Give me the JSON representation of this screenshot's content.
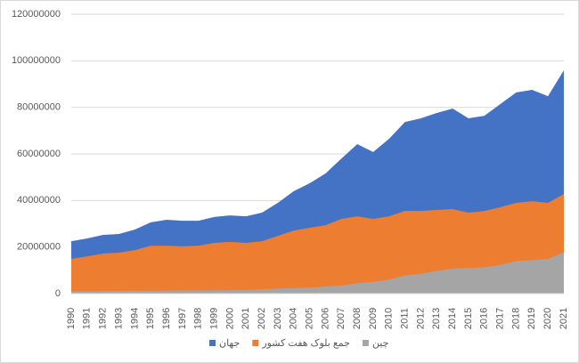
{
  "chart_data": {
    "type": "area",
    "categories": [
      "1990",
      "1991",
      "1992",
      "1993",
      "1994",
      "1995",
      "1996",
      "1997",
      "1998",
      "1999",
      "2000",
      "2001",
      "2002",
      "2003",
      "2004",
      "2005",
      "2006",
      "2007",
      "2008",
      "2009",
      "2010",
      "2011",
      "2012",
      "2013",
      "2014",
      "2015",
      "2016",
      "2017",
      "2018",
      "2019",
      "2020",
      "2021"
    ],
    "series": [
      {
        "name": "جهان",
        "color": "#4472c4",
        "values": [
          22500000,
          23700000,
          25200000,
          25600000,
          27500000,
          30600000,
          31700000,
          31300000,
          31300000,
          32900000,
          33600000,
          33200000,
          34800000,
          39000000,
          44000000,
          47400000,
          51600000,
          58000000,
          64200000,
          60800000,
          66500000,
          73700000,
          75300000,
          77600000,
          79500000,
          75300000,
          76400000,
          81400000,
          86400000,
          87500000,
          84800000,
          95900000
        ]
      },
      {
        "name": "جمع بلوک هفت کشور",
        "color": "#ed7d31",
        "values": [
          14900000,
          16000000,
          17200000,
          17600000,
          18700000,
          20600000,
          20600000,
          20300000,
          20600000,
          21800000,
          22200000,
          21800000,
          22500000,
          24800000,
          27100000,
          28300000,
          29400000,
          32100000,
          33200000,
          32100000,
          33200000,
          35500000,
          35500000,
          35900000,
          36300000,
          34800000,
          35500000,
          37100000,
          39000000,
          39700000,
          39000000,
          42800000
        ]
      },
      {
        "name": "چین",
        "color": "#a5a5a5",
        "values": [
          1000000,
          1050000,
          1100000,
          1150000,
          1200000,
          1250000,
          1300000,
          1350000,
          1400000,
          1450000,
          1500000,
          1600000,
          1800000,
          2200000,
          2400000,
          2600000,
          3000000,
          3500000,
          4500000,
          5000000,
          6000000,
          7800000,
          8500000,
          9800000,
          10700000,
          11000000,
          11300000,
          12300000,
          14000000,
          14400000,
          14900000,
          17800000
        ]
      }
    ],
    "ylim": [
      0,
      120000000
    ],
    "yticks": [
      0,
      20000000,
      40000000,
      60000000,
      80000000,
      100000000,
      120000000
    ],
    "grid": true,
    "legend": "bottom"
  }
}
